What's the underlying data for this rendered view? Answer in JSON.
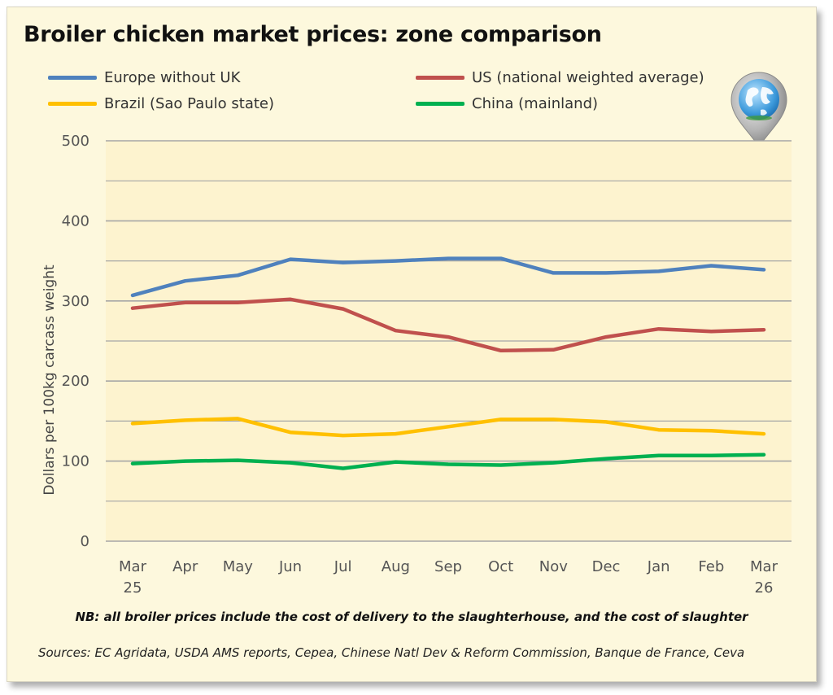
{
  "chart_data": {
    "type": "line",
    "title": "Broiler chicken market prices: zone comparison",
    "ylabel": "Dollars per 100kg carcass weight",
    "xlabel": "",
    "ylim": [
      0,
      500
    ],
    "yticks": [
      0,
      100,
      200,
      300,
      400,
      500
    ],
    "grid": true,
    "legend_position": "top",
    "categories": [
      [
        "Mar",
        "25"
      ],
      [
        "Apr"
      ],
      [
        "May"
      ],
      [
        "Jun"
      ],
      [
        "Jul"
      ],
      [
        "Aug"
      ],
      [
        "Sep"
      ],
      [
        "Oct"
      ],
      [
        "Nov"
      ],
      [
        "Dec"
      ],
      [
        "Jan"
      ],
      [
        "Feb"
      ],
      [
        "Mar",
        "26"
      ]
    ],
    "series": [
      {
        "name": "Europe without UK",
        "color": "#4f81bd",
        "values": [
          307,
          325,
          332,
          352,
          348,
          350,
          353,
          353,
          335,
          335,
          337,
          344,
          339
        ]
      },
      {
        "name": "US (national weighted average)",
        "color": "#c0504d",
        "values": [
          291,
          298,
          298,
          302,
          290,
          263,
          255,
          238,
          239,
          255,
          265,
          262,
          264
        ]
      },
      {
        "name": "Brazil (Sao Paulo state)",
        "color": "#ffc000",
        "values": [
          147,
          151,
          153,
          136,
          132,
          134,
          143,
          152,
          152,
          149,
          139,
          138,
          134
        ]
      },
      {
        "name": "China (mainland)",
        "color": "#00b050",
        "values": [
          97,
          100,
          101,
          98,
          91,
          99,
          96,
          95,
          98,
          103,
          107,
          107,
          108
        ]
      }
    ]
  },
  "notes": {
    "nb": "NB: all broiler prices include the cost of delivery to the slaughterhouse, and the cost of slaughter",
    "sources": "Sources: EC Agridata, USDA AMS reports, Cepea, Chinese Natl Dev & Reform Commission, Banque de France, Ceva"
  },
  "icons": {
    "logo": "globe-pin-icon"
  },
  "colors": {
    "background": "#fdf8dd",
    "plot_area": "#fdf3cf",
    "gridline": "#a6a6a6"
  }
}
